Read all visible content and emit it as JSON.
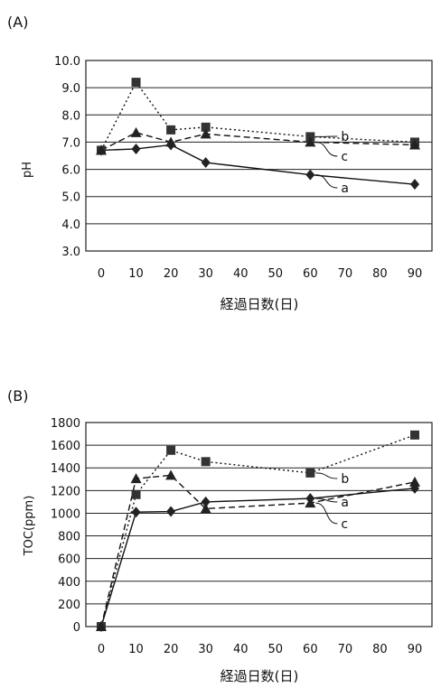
{
  "chart_data": [
    {
      "type": "line",
      "panel_label": "(A)",
      "xlabel": "経過日数(日)",
      "ylabel": "pH",
      "x_ticks": [
        0,
        10,
        20,
        30,
        40,
        50,
        60,
        70,
        80,
        90
      ],
      "y_ticks": [
        "3.0",
        "4.0",
        "5.0",
        "6.0",
        "7.0",
        "8.0",
        "9.0",
        "10.0"
      ],
      "xlim": [
        0,
        90
      ],
      "ylim": [
        3.0,
        10.0
      ],
      "grid": "horizontal",
      "series": [
        {
          "name": "a",
          "marker": "diamond",
          "line": "solid",
          "x": [
            0,
            10,
            20,
            30,
            60,
            90
          ],
          "y": [
            6.7,
            6.75,
            6.9,
            6.25,
            5.8,
            5.45
          ]
        },
        {
          "name": "b",
          "marker": "square",
          "line": "dotted",
          "x": [
            0,
            10,
            20,
            30,
            60,
            90
          ],
          "y": [
            6.7,
            9.2,
            7.45,
            7.55,
            7.2,
            7.0
          ]
        },
        {
          "name": "c",
          "marker": "triangle",
          "line": "dashed",
          "x": [
            0,
            10,
            20,
            30,
            60,
            90
          ],
          "y": [
            6.7,
            7.35,
            7.0,
            7.3,
            7.0,
            6.9
          ]
        }
      ]
    },
    {
      "type": "line",
      "panel_label": "(B)",
      "xlabel": "経過日数(日)",
      "ylabel": "TOC(ppm)",
      "x_ticks": [
        0,
        10,
        20,
        30,
        40,
        50,
        60,
        70,
        80,
        90
      ],
      "y_ticks": [
        "0",
        "200",
        "400",
        "600",
        "800",
        "1000",
        "1200",
        "1400",
        "1600",
        "1800"
      ],
      "xlim": [
        0,
        90
      ],
      "ylim": [
        0,
        1800
      ],
      "grid": "horizontal",
      "series": [
        {
          "name": "a",
          "marker": "diamond",
          "line": "solid",
          "x": [
            0,
            10,
            20,
            30,
            60,
            90
          ],
          "y": [
            0,
            1010,
            1015,
            1100,
            1130,
            1220
          ]
        },
        {
          "name": "b",
          "marker": "square",
          "line": "dotted",
          "x": [
            0,
            10,
            20,
            30,
            60,
            90
          ],
          "y": [
            0,
            1165,
            1555,
            1455,
            1355,
            1690
          ]
        },
        {
          "name": "c",
          "marker": "triangle",
          "line": "dashed",
          "x": [
            0,
            10,
            20,
            30,
            60,
            90
          ],
          "y": [
            0,
            1305,
            1335,
            1040,
            1090,
            1275
          ]
        }
      ]
    }
  ]
}
